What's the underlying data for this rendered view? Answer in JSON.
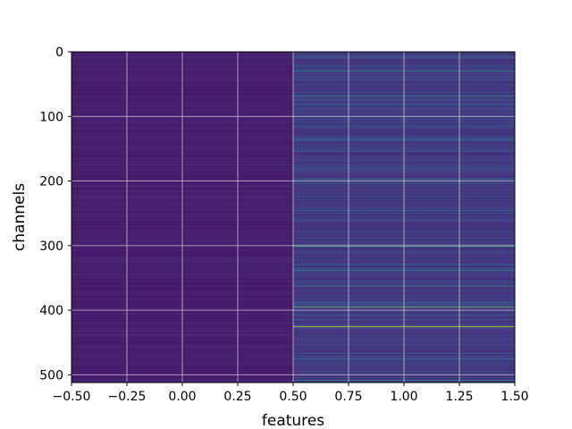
{
  "chart_data": {
    "type": "heatmap",
    "title": "",
    "xlabel": "features",
    "ylabel": "channels",
    "xlim": [
      -0.5,
      1.5
    ],
    "ylim": [
      512,
      0
    ],
    "y_inverted": true,
    "grid": true,
    "colormap": "viridis",
    "n_rows": 512,
    "n_cols": 2,
    "x_ticks": [
      -0.5,
      -0.25,
      0.0,
      0.25,
      0.5,
      0.75,
      1.0,
      1.25,
      1.5
    ],
    "x_tick_labels": [
      "−0.50",
      "−0.25",
      "0.00",
      "0.25",
      "0.50",
      "0.75",
      "1.00",
      "1.25",
      "1.50"
    ],
    "y_ticks": [
      0,
      100,
      200,
      300,
      400,
      500
    ],
    "y_tick_labels": [
      "0",
      "100",
      "200",
      "300",
      "400",
      "500"
    ],
    "columns": [
      {
        "index": 0,
        "baseline": 0.07,
        "variation": 0.05,
        "highlight_rows": []
      },
      {
        "index": 1,
        "baseline": 0.14,
        "variation": 0.12,
        "highlight_rows": [
          {
            "row": 8,
            "value": 0.45
          },
          {
            "row": 29,
            "value": 0.5
          },
          {
            "row": 68,
            "value": 0.45
          },
          {
            "row": 135,
            "value": 0.4
          },
          {
            "row": 197,
            "value": 0.45
          },
          {
            "row": 203,
            "value": 0.4
          },
          {
            "row": 245,
            "value": 0.4
          },
          {
            "row": 301,
            "value": 0.62
          },
          {
            "row": 338,
            "value": 0.45
          },
          {
            "row": 362,
            "value": 0.55
          },
          {
            "row": 395,
            "value": 0.8
          },
          {
            "row": 425,
            "value": 0.92
          },
          {
            "row": 475,
            "value": 0.4
          },
          {
            "row": 508,
            "value": 0.5
          }
        ]
      }
    ]
  }
}
